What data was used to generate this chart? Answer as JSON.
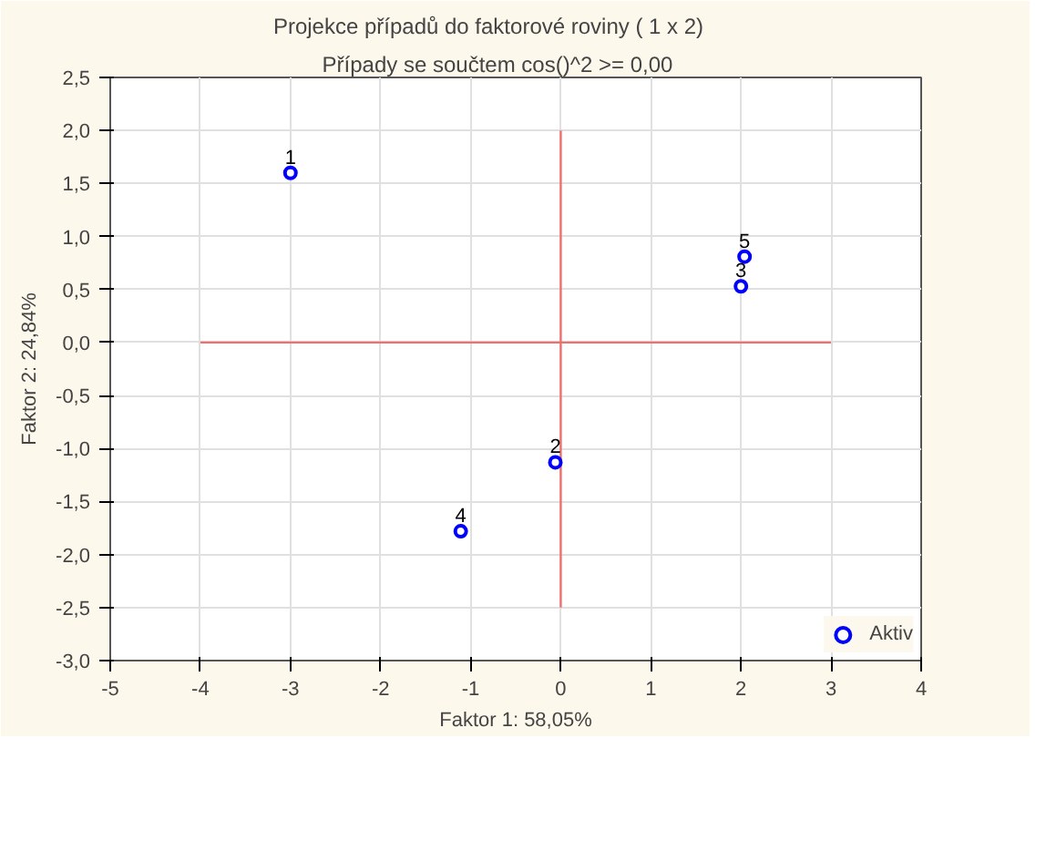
{
  "chart_data": {
    "type": "scatter",
    "title": "Projekce případů do faktorové roviny        ( 1 x   2)",
    "subtitle": "Případy se součtem cos()^2   >=     0,00",
    "xlabel": "Faktor 1: 58,05%",
    "ylabel": "Faktor 2: 24,84%",
    "xlim": [
      -5,
      4
    ],
    "ylim": [
      -3,
      2.5
    ],
    "xticks": [
      -5,
      -4,
      -3,
      -2,
      -1,
      0,
      1,
      2,
      3,
      4
    ],
    "yticks": [
      {
        "value": -3,
        "label": "-3,0"
      },
      {
        "value": -2.5,
        "label": "-2,5"
      },
      {
        "value": -2,
        "label": "-2,0"
      },
      {
        "value": -1.5,
        "label": "-1,5"
      },
      {
        "value": -1,
        "label": "-1,0"
      },
      {
        "value": -0.5,
        "label": "-0,5"
      },
      {
        "value": 0,
        "label": "0,0"
      },
      {
        "value": 0.5,
        "label": "0,5"
      },
      {
        "value": 1,
        "label": "1,0"
      },
      {
        "value": 1.5,
        "label": "1,5"
      },
      {
        "value": 2,
        "label": "2,0"
      },
      {
        "value": 2.5,
        "label": "2,5"
      }
    ],
    "grid": true,
    "legend": "bottom right",
    "series": [
      {
        "type": "line",
        "color": "#ef6f6f",
        "x": [
          -4,
          3
        ],
        "values": [
          0,
          0
        ]
      },
      {
        "type": "line",
        "color": "#ef6f6f",
        "x": [
          0,
          0
        ],
        "values": [
          -2.5,
          2
        ]
      },
      {
        "marker": "circle",
        "name": "Aktiv",
        "color": "#0000ff",
        "x": [
          -3,
          -0.06,
          2.0,
          -1.11,
          2.04
        ],
        "values": [
          1.6,
          -1.13,
          0.53,
          -1.78,
          0.81
        ]
      }
    ],
    "annotations": [
      {
        "text": "1",
        "x": -3,
        "y": 1.6
      },
      {
        "text": "2",
        "x": -0.06,
        "y": -1.13
      },
      {
        "text": "3",
        "x": 2.0,
        "y": 0.53
      },
      {
        "text": "4",
        "x": -1.11,
        "y": -1.78
      },
      {
        "text": "5",
        "x": 2.04,
        "y": 0.81
      }
    ]
  }
}
